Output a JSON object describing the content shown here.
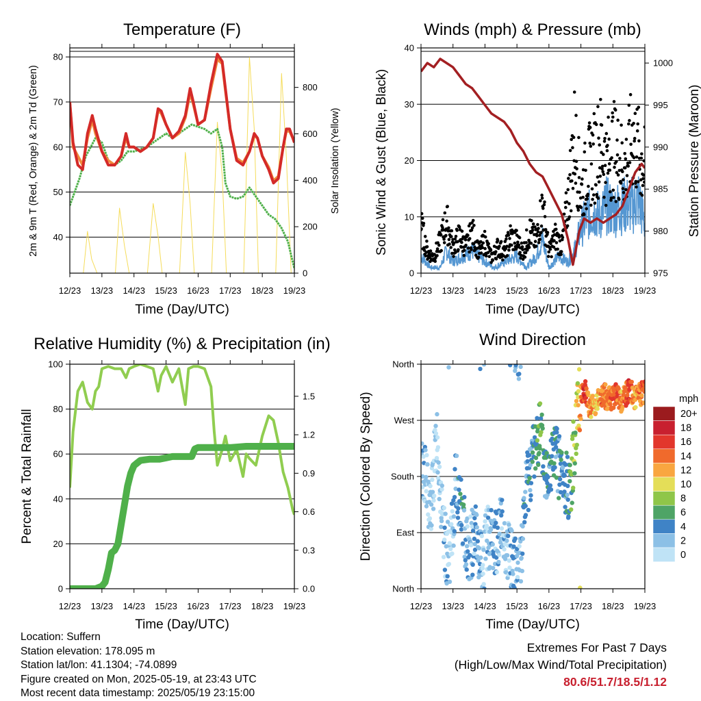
{
  "panels": {
    "temperature": {
      "title": "Temperature (F)",
      "ylabel_left": "2m & 9m T (Red, Orange) & 2m Td (Green)",
      "ylabel_right": "Solar Insolation (Yellow)",
      "xlabel": "Time (Day/UTC)"
    },
    "winds": {
      "title": "Winds (mph) & Pressure (mb)",
      "ylabel_left": "Sonic Wind & Gust (Blue, Black)",
      "ylabel_right": "Station Pressure (Maroon)",
      "xlabel": "Time (Day/UTC)"
    },
    "humidity": {
      "title": "Relative Humidity (%) & Precipitation (in)",
      "ylabel_left": "Percent & Total Rainfall",
      "xlabel": "Time (Day/UTC)"
    },
    "direction": {
      "title": "Wind Direction",
      "ylabel_left": "Direction (Colored By Speed)",
      "xlabel": "Time (Day/UTC)",
      "legend_title": "mph"
    }
  },
  "info": {
    "location": "Location: Suffern",
    "elevation": "Station elevation: 178.095 m",
    "latlon": "Station lat/lon: 41.1304; -74.0899",
    "created": "Figure created on Mon, 2025-05-19, at 23:43 UTC",
    "recent": "Most recent data timestamp: 2025/05/19 23:15:00"
  },
  "extremes": {
    "heading": "Extremes For Past 7 Days",
    "subheading": "(High/Low/Max Wind/Total Precipitation)",
    "values": "80.6/51.7/18.5/1.12"
  },
  "colors": {
    "temp_2m": "#d42a28",
    "temp_9m": "#f08a3c",
    "dewpoint": "#4fb04a",
    "solar": "#f5dc5a",
    "wind": "#5597d2",
    "gust": "#000000",
    "pressure": "#a31f22",
    "rh": "#90cd50",
    "precip": "#4fb04a"
  },
  "chart_data": [
    {
      "id": "temperature",
      "type": "line",
      "title": "Temperature (F)",
      "xlabel": "Time (Day/UTC)",
      "ylabel": "2m & 9m T (Red, Orange) & 2m Td (Green)",
      "y2label": "Solar Insolation (Yellow)",
      "x_ticks": [
        "12/23",
        "13/23",
        "14/23",
        "15/23",
        "16/23",
        "17/23",
        "18/23",
        "19/23"
      ],
      "xlim": [
        0,
        7
      ],
      "ylim": [
        32,
        82
      ],
      "y_ticks": [
        40,
        50,
        60,
        70,
        80
      ],
      "y2lim": [
        0,
        970
      ],
      "y2_ticks": [
        0,
        200,
        400,
        600,
        800
      ],
      "grid": true,
      "series": [
        {
          "name": "2m T",
          "axis": "left",
          "color": "#d42a28",
          "x": [
            0,
            0.1,
            0.25,
            0.4,
            0.55,
            0.7,
            0.8,
            1.0,
            1.2,
            1.4,
            1.6,
            1.75,
            1.85,
            2.0,
            2.2,
            2.4,
            2.6,
            2.75,
            2.85,
            3.0,
            3.2,
            3.4,
            3.6,
            3.75,
            3.85,
            4.0,
            4.2,
            4.4,
            4.6,
            4.75,
            4.85,
            5.0,
            5.2,
            5.4,
            5.6,
            5.75,
            5.85,
            6.0,
            6.2,
            6.35,
            6.5,
            6.65,
            6.75,
            6.85,
            6.95,
            7.0
          ],
          "y": [
            70,
            61,
            56,
            55,
            63,
            67,
            64,
            59,
            56,
            56,
            58,
            63,
            60,
            60,
            59,
            60,
            62,
            68.5,
            68,
            65,
            62,
            63.5,
            67,
            73,
            70,
            65,
            66,
            74,
            80.6,
            79,
            73,
            64,
            57,
            56,
            59,
            63,
            62,
            58,
            55,
            52,
            53,
            60,
            64,
            64,
            62,
            61
          ]
        },
        {
          "name": "9m T",
          "axis": "left",
          "color": "#f08a3c",
          "x": [
            0,
            0.1,
            0.25,
            0.4,
            0.55,
            0.7,
            0.8,
            1.0,
            1.2,
            1.4,
            1.6,
            1.75,
            1.85,
            2.0,
            2.2,
            2.4,
            2.6,
            2.75,
            2.85,
            3.0,
            3.2,
            3.4,
            3.6,
            3.75,
            3.85,
            4.0,
            4.2,
            4.4,
            4.6,
            4.75,
            4.85,
            5.0,
            5.2,
            5.4,
            5.6,
            5.75,
            5.85,
            6.0,
            6.2,
            6.35,
            6.5,
            6.65,
            6.75,
            6.85,
            6.95,
            7.0
          ],
          "y": [
            70,
            60,
            58,
            56,
            62,
            66,
            63,
            59,
            57,
            56,
            58,
            62,
            60,
            60,
            59,
            60,
            62,
            68,
            67.5,
            65,
            62,
            63,
            66.5,
            72,
            69.5,
            65,
            66,
            73,
            79.5,
            78.5,
            72.5,
            64,
            57.5,
            56.5,
            59,
            62.5,
            62,
            58,
            55.5,
            52.5,
            53.5,
            60,
            63.5,
            63.5,
            62,
            61
          ]
        },
        {
          "name": "2m Td",
          "axis": "left",
          "color": "#4fb04a",
          "x": [
            0,
            0.15,
            0.3,
            0.5,
            0.65,
            0.8,
            1.0,
            1.2,
            1.4,
            1.6,
            1.8,
            2.0,
            2.2,
            2.4,
            2.6,
            2.8,
            3.0,
            3.2,
            3.4,
            3.6,
            3.8,
            4.0,
            4.2,
            4.4,
            4.6,
            4.75,
            4.85,
            5.0,
            5.2,
            5.4,
            5.6,
            5.8,
            6.0,
            6.2,
            6.4,
            6.6,
            6.8,
            6.9,
            7.0
          ],
          "y": [
            47,
            50,
            53,
            58,
            60,
            62,
            61,
            57,
            56,
            57,
            59,
            59,
            59.5,
            60,
            61,
            62,
            63,
            62,
            63,
            64,
            65,
            64.5,
            64,
            63,
            64,
            60,
            52,
            49,
            48.5,
            49,
            51,
            49,
            47,
            45,
            44,
            42,
            39,
            36,
            33
          ]
        },
        {
          "name": "Solar Insolation",
          "axis": "right",
          "color": "#f5dc5a",
          "x": [
            0,
            0.42,
            0.55,
            0.68,
            0.85,
            1.42,
            1.55,
            1.7,
            1.85,
            2.42,
            2.6,
            2.75,
            2.88,
            3.42,
            3.6,
            3.75,
            3.88,
            4.42,
            4.6,
            4.75,
            4.88,
            5.42,
            5.6,
            5.75,
            5.88,
            6.42,
            6.6,
            6.75,
            6.9,
            7.0
          ],
          "y": [
            0,
            0,
            180,
            60,
            0,
            0,
            280,
            120,
            0,
            0,
            300,
            160,
            0,
            0,
            520,
            300,
            0,
            0,
            650,
            420,
            0,
            0,
            930,
            620,
            0,
            0,
            860,
            500,
            0,
            0
          ]
        }
      ]
    },
    {
      "id": "winds",
      "type": "scatter",
      "title": "Winds (mph) & Pressure (mb)",
      "xlabel": "Time (Day/UTC)",
      "ylabel": "Sonic Wind & Gust (Blue, Black)",
      "y2label": "Station Pressure (Maroon)",
      "x_ticks": [
        "12/23",
        "13/23",
        "14/23",
        "15/23",
        "16/23",
        "17/23",
        "18/23",
        "19/23"
      ],
      "xlim": [
        0,
        7
      ],
      "ylim": [
        0,
        40
      ],
      "y_ticks": [
        0,
        10,
        20,
        30,
        40
      ],
      "y2lim": [
        975,
        1001.8
      ],
      "y2_ticks": [
        975,
        980,
        985,
        990,
        995,
        1000
      ],
      "grid": true,
      "series": [
        {
          "name": "Sonic Wind",
          "axis": "left",
          "color": "#5597d2",
          "x": [
            0,
            0.3,
            0.6,
            0.8,
            1.0,
            1.3,
            1.6,
            2.0,
            2.3,
            2.6,
            3.0,
            3.3,
            3.6,
            3.8,
            4.0,
            4.3,
            4.6,
            4.8,
            5.0,
            5.2,
            5.4,
            5.6,
            5.8,
            6.0,
            6.3,
            6.6,
            6.8,
            7.0
          ],
          "y": [
            3,
            1,
            1,
            4,
            2,
            3,
            4,
            2,
            1,
            2,
            3,
            1,
            3,
            6,
            1,
            3,
            2,
            4,
            8,
            10,
            11,
            10,
            12,
            11,
            12,
            12,
            13,
            9
          ]
        },
        {
          "name": "Gust",
          "axis": "left",
          "color": "#000000",
          "x": [
            0,
            0.2,
            0.4,
            0.6,
            0.8,
            1.0,
            1.2,
            1.4,
            1.6,
            1.8,
            2.0,
            2.2,
            2.4,
            2.6,
            2.8,
            3.0,
            3.2,
            3.4,
            3.6,
            3.8,
            4.0,
            4.2,
            4.4,
            4.6,
            4.8,
            5.0,
            5.2,
            5.4,
            5.6,
            5.8,
            6.0,
            6.2,
            6.4,
            6.6,
            6.8,
            7.0
          ],
          "y": [
            9,
            4,
            3,
            6,
            10,
            5,
            7,
            5,
            8,
            4,
            6,
            3,
            5,
            4,
            7,
            6,
            4,
            8,
            6,
            13,
            4,
            7,
            5,
            14,
            26,
            15,
            20,
            22,
            25,
            21,
            24,
            22,
            20,
            26,
            23,
            20
          ]
        },
        {
          "name": "Station Pressure",
          "axis": "right",
          "color": "#a31f22",
          "x": [
            0,
            0.2,
            0.4,
            0.6,
            0.8,
            1.0,
            1.2,
            1.4,
            1.6,
            1.8,
            2.0,
            2.2,
            2.4,
            2.6,
            2.8,
            3.0,
            3.2,
            3.4,
            3.6,
            3.8,
            4.0,
            4.2,
            4.4,
            4.6,
            4.75,
            4.85,
            4.95,
            5.1,
            5.3,
            5.5,
            5.7,
            5.9,
            6.1,
            6.3,
            6.5,
            6.7,
            6.9,
            7.0
          ],
          "y": [
            999,
            1000,
            999.5,
            1000.5,
            1000,
            999.5,
            998.5,
            997.5,
            997,
            996,
            995,
            994,
            993.5,
            993,
            992,
            990.5,
            989.5,
            988,
            987,
            986.5,
            985,
            983.5,
            982,
            979,
            976,
            978,
            980,
            981.5,
            981,
            981.5,
            981,
            981.5,
            982,
            983,
            985,
            987,
            988,
            987.5
          ]
        }
      ]
    },
    {
      "id": "humidity",
      "type": "line",
      "title": "Relative Humidity (%) & Precipitation (in)",
      "xlabel": "Time (Day/UTC)",
      "ylabel": "Percent & Total Rainfall",
      "x_ticks": [
        "12/23",
        "13/23",
        "14/23",
        "15/23",
        "16/23",
        "17/23",
        "18/23",
        "19/23"
      ],
      "xlim": [
        0,
        7
      ],
      "ylim": [
        0,
        100
      ],
      "y_ticks": [
        0,
        20,
        40,
        60,
        80,
        100
      ],
      "y2lim": [
        0,
        1.75
      ],
      "y2_ticks": [
        "0.0",
        "0.3",
        "0.6",
        "0.9",
        "1.2",
        "1.5"
      ],
      "grid": true,
      "series": [
        {
          "name": "Relative Humidity",
          "axis": "left",
          "color": "#90cd50",
          "x": [
            0,
            0.1,
            0.25,
            0.4,
            0.55,
            0.7,
            0.8,
            0.9,
            1.0,
            1.2,
            1.4,
            1.6,
            1.75,
            1.85,
            2.0,
            2.2,
            2.4,
            2.6,
            2.75,
            2.85,
            3.0,
            3.2,
            3.4,
            3.6,
            3.7,
            3.85,
            4.0,
            4.2,
            4.4,
            4.5,
            4.6,
            4.75,
            4.85,
            5.0,
            5.2,
            5.4,
            5.5,
            5.6,
            5.8,
            6.0,
            6.2,
            6.35,
            6.5,
            6.65,
            6.8,
            6.95,
            7.0
          ],
          "y": [
            45,
            70,
            88,
            92,
            83,
            80,
            88,
            90,
            98,
            99,
            98,
            98,
            94,
            98,
            99,
            100,
            99,
            98,
            88,
            95,
            99,
            92,
            98,
            82,
            98,
            99,
            99,
            98,
            90,
            70,
            55,
            62,
            68,
            57,
            62,
            50,
            60,
            58,
            55,
            68,
            77,
            75,
            65,
            52,
            45,
            35,
            33
          ]
        },
        {
          "name": "Total Precipitation",
          "axis": "right",
          "color": "#4fb04a",
          "x": [
            0,
            0.8,
            1.0,
            1.1,
            1.2,
            1.3,
            1.4,
            1.5,
            1.6,
            1.7,
            1.8,
            1.9,
            2.0,
            2.1,
            2.2,
            2.5,
            2.8,
            3.0,
            3.2,
            3.5,
            3.8,
            3.9,
            4.0,
            4.5,
            5.0,
            5.5,
            6.0,
            6.5,
            7.0
          ],
          "y": [
            0,
            0,
            0.02,
            0.05,
            0.15,
            0.28,
            0.3,
            0.35,
            0.5,
            0.65,
            0.8,
            0.9,
            0.96,
            0.98,
            1.0,
            1.01,
            1.01,
            1.02,
            1.03,
            1.03,
            1.03,
            1.09,
            1.1,
            1.1,
            1.1,
            1.11,
            1.11,
            1.11,
            1.11
          ]
        }
      ]
    },
    {
      "id": "direction",
      "type": "scatter",
      "title": "Wind Direction",
      "xlabel": "Time (Day/UTC)",
      "ylabel": "Direction (Colored By Speed)",
      "x_ticks": [
        "12/23",
        "13/23",
        "14/23",
        "15/23",
        "16/23",
        "17/23",
        "18/23",
        "19/23"
      ],
      "xlim": [
        0,
        7
      ],
      "ylim": [
        0,
        360
      ],
      "y_ticks": [
        "North",
        "East",
        "South",
        "West",
        "North"
      ],
      "y_tick_values": [
        0,
        90,
        180,
        270,
        360
      ],
      "grid": true,
      "legend": {
        "title": "mph",
        "placement": "right",
        "labels": [
          "20+",
          "18",
          "16",
          "14",
          "12",
          "10",
          "8",
          "6",
          "4",
          "2",
          "0"
        ],
        "colors": [
          "#9b1b1e",
          "#c8202f",
          "#e2362c",
          "#f06a2c",
          "#f9a640",
          "#e4de58",
          "#8fc649",
          "#4ea466",
          "#3f83c6",
          "#8cc0e6",
          "#bfe3f6"
        ]
      },
      "series": [
        {
          "name": "Direction",
          "x": [
            0.1,
            0.3,
            0.5,
            0.7,
            0.9,
            1.1,
            1.3,
            1.5,
            1.7,
            1.9,
            2.1,
            2.3,
            2.5,
            2.7,
            2.9,
            3.1,
            3.3,
            3.5,
            3.7,
            3.9,
            4.1,
            4.3,
            4.5,
            4.7,
            4.9,
            5.1,
            5.3,
            5.5,
            5.7,
            5.9,
            6.1,
            6.3,
            6.5,
            6.7,
            6.9
          ],
          "y": [
            190,
            120,
            250,
            80,
            40,
            175,
            110,
            60,
            85,
            30,
            90,
            70,
            100,
            60,
            40,
            25,
            170,
            210,
            260,
            180,
            220,
            200,
            160,
            175,
            300,
            320,
            290,
            300,
            310,
            305,
            310,
            300,
            320,
            305,
            315
          ],
          "speed": [
            2,
            1,
            1,
            2,
            1,
            3,
            4,
            2,
            3,
            1,
            2,
            3,
            2,
            1,
            3,
            2,
            4,
            4,
            6,
            4,
            5,
            4,
            3,
            6,
            10,
            16,
            12,
            11,
            14,
            13,
            15,
            12,
            16,
            12,
            14
          ]
        }
      ]
    }
  ]
}
